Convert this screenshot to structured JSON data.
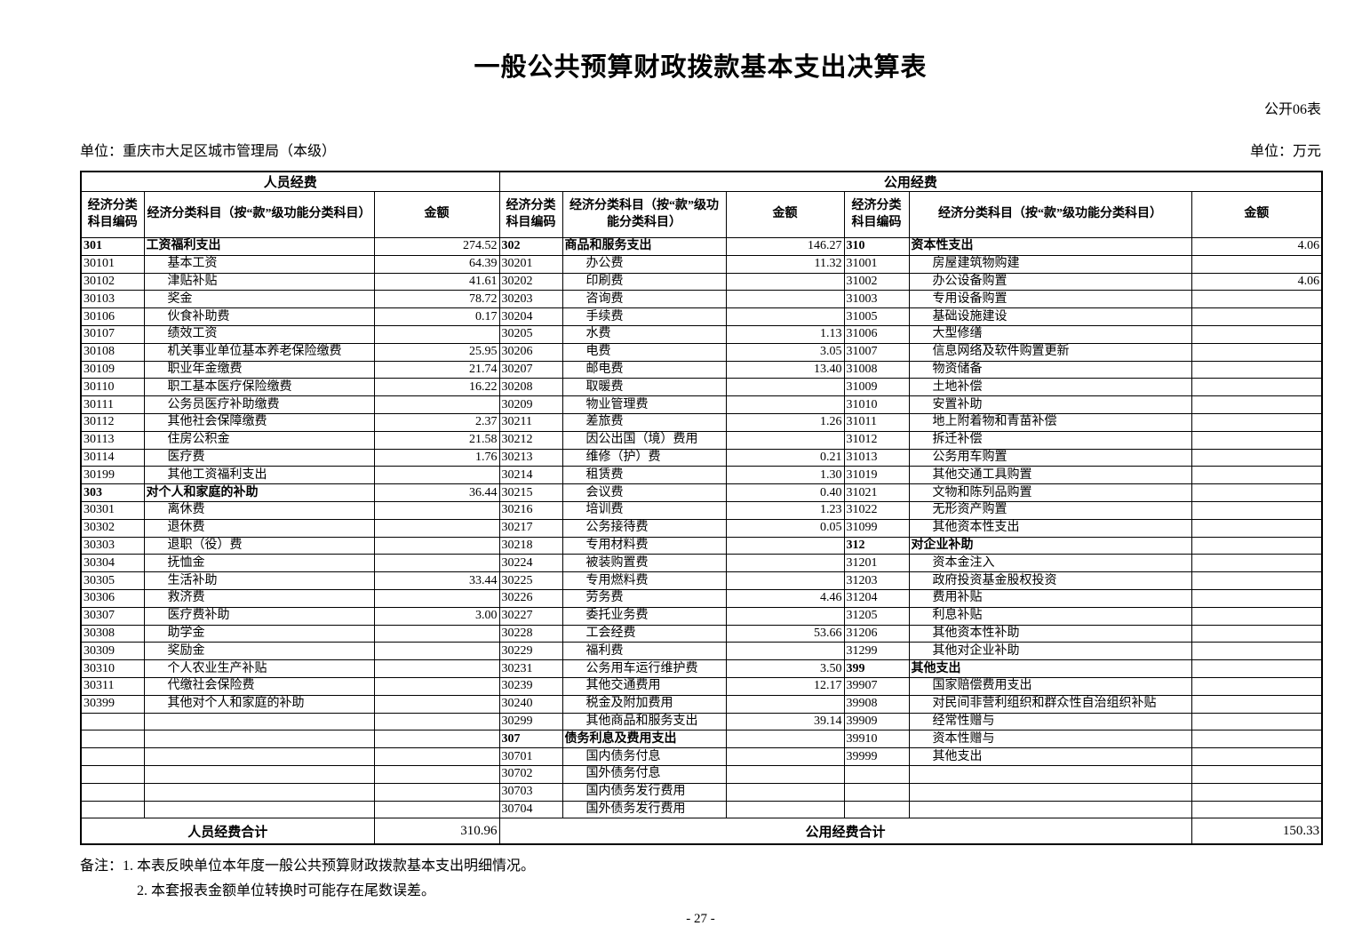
{
  "header": {
    "title": "一般公共预算财政拨款基本支出决算表",
    "form_code": "公开06表",
    "org_label": "单位：重庆市大足区城市管理局（本级）",
    "unit_label": "单位：万元"
  },
  "table": {
    "groups": [
      {
        "label": "人员经费"
      },
      {
        "label": "公用经费"
      }
    ],
    "col_headers": {
      "code": "经济分类科目编码",
      "subject": "经济分类科目（按“款”级功能分类科目）",
      "amount": "金额"
    },
    "rows": [
      [
        "301",
        "工资福利支出",
        "274.52",
        "302",
        "商品和服务支出",
        "146.27",
        "310",
        "资本性支出",
        "4.06"
      ],
      [
        "30101",
        "基本工资",
        "64.39",
        "30201",
        "办公费",
        "11.32",
        "31001",
        "房屋建筑物购建",
        ""
      ],
      [
        "30102",
        "津贴补贴",
        "41.61",
        "30202",
        "印刷费",
        "",
        "31002",
        "办公设备购置",
        "4.06"
      ],
      [
        "30103",
        "奖金",
        "78.72",
        "30203",
        "咨询费",
        "",
        "31003",
        "专用设备购置",
        ""
      ],
      [
        "30106",
        "伙食补助费",
        "0.17",
        "30204",
        "手续费",
        "",
        "31005",
        "基础设施建设",
        ""
      ],
      [
        "30107",
        "绩效工资",
        "",
        "30205",
        "水费",
        "1.13",
        "31006",
        "大型修缮",
        ""
      ],
      [
        "30108",
        "机关事业单位基本养老保险缴费",
        "25.95",
        "30206",
        "电费",
        "3.05",
        "31007",
        "信息网络及软件购置更新",
        ""
      ],
      [
        "30109",
        "职业年金缴费",
        "21.74",
        "30207",
        "邮电费",
        "13.40",
        "31008",
        "物资储备",
        ""
      ],
      [
        "30110",
        "职工基本医疗保险缴费",
        "16.22",
        "30208",
        "取暖费",
        "",
        "31009",
        "土地补偿",
        ""
      ],
      [
        "30111",
        "公务员医疗补助缴费",
        "",
        "30209",
        "物业管理费",
        "",
        "31010",
        "安置补助",
        ""
      ],
      [
        "30112",
        "其他社会保障缴费",
        "2.37",
        "30211",
        "差旅费",
        "1.26",
        "31011",
        "地上附着物和青苗补偿",
        ""
      ],
      [
        "30113",
        "住房公积金",
        "21.58",
        "30212",
        "因公出国（境）费用",
        "",
        "31012",
        "拆迁补偿",
        ""
      ],
      [
        "30114",
        "医疗费",
        "1.76",
        "30213",
        "维修（护）费",
        "0.21",
        "31013",
        "公务用车购置",
        ""
      ],
      [
        "30199",
        "其他工资福利支出",
        "",
        "30214",
        "租赁费",
        "1.30",
        "31019",
        "其他交通工具购置",
        ""
      ],
      [
        "303",
        "对个人和家庭的补助",
        "36.44",
        "30215",
        "会议费",
        "0.40",
        "31021",
        "文物和陈列品购置",
        ""
      ],
      [
        "30301",
        "离休费",
        "",
        "30216",
        "培训费",
        "1.23",
        "31022",
        "无形资产购置",
        ""
      ],
      [
        "30302",
        "退休费",
        "",
        "30217",
        "公务接待费",
        "0.05",
        "31099",
        "其他资本性支出",
        ""
      ],
      [
        "30303",
        "退职（役）费",
        "",
        "30218",
        "专用材料费",
        "",
        "312",
        "对企业补助",
        ""
      ],
      [
        "30304",
        "抚恤金",
        "",
        "30224",
        "被装购置费",
        "",
        "31201",
        "资本金注入",
        ""
      ],
      [
        "30305",
        "生活补助",
        "33.44",
        "30225",
        "专用燃料费",
        "",
        "31203",
        "政府投资基金股权投资",
        ""
      ],
      [
        "30306",
        "救济费",
        "",
        "30226",
        "劳务费",
        "4.46",
        "31204",
        "费用补贴",
        ""
      ],
      [
        "30307",
        "医疗费补助",
        "3.00",
        "30227",
        "委托业务费",
        "",
        "31205",
        "利息补贴",
        ""
      ],
      [
        "30308",
        "助学金",
        "",
        "30228",
        "工会经费",
        "53.66",
        "31206",
        "其他资本性补助",
        ""
      ],
      [
        "30309",
        "奖励金",
        "",
        "30229",
        "福利费",
        "",
        "31299",
        "其他对企业补助",
        ""
      ],
      [
        "30310",
        "个人农业生产补贴",
        "",
        "30231",
        "公务用车运行维护费",
        "3.50",
        "399",
        "其他支出",
        ""
      ],
      [
        "30311",
        "代缴社会保险费",
        "",
        "30239",
        "其他交通费用",
        "12.17",
        "39907",
        "国家赔偿费用支出",
        ""
      ],
      [
        "30399",
        "其他对个人和家庭的补助",
        "",
        "30240",
        "税金及附加费用",
        "",
        "39908",
        "对民间非营利组织和群众性自治组织补贴",
        ""
      ],
      [
        "",
        "",
        "",
        "30299",
        "其他商品和服务支出",
        "39.14",
        "39909",
        "经常性赠与",
        ""
      ],
      [
        "",
        "",
        "",
        "307",
        "债务利息及费用支出",
        "",
        "39910",
        "资本性赠与",
        ""
      ],
      [
        "",
        "",
        "",
        "30701",
        "国内债务付息",
        "",
        "39999",
        "其他支出",
        ""
      ],
      [
        "",
        "",
        "",
        "30702",
        "国外债务付息",
        "",
        "",
        "",
        ""
      ],
      [
        "",
        "",
        "",
        "30703",
        "国内债务发行费用",
        "",
        "",
        "",
        ""
      ],
      [
        "",
        "",
        "",
        "30704",
        "国外债务发行费用",
        "",
        "",
        "",
        ""
      ]
    ],
    "totals": {
      "personnel_label": "人员经费合计",
      "personnel_amount": "310.96",
      "public_label": "公用经费合计",
      "public_amount": "150.33"
    }
  },
  "footer": {
    "notes_prefix": "备注：",
    "note_1": "1. 本表反映单位本年度一般公共预算财政拨款基本支出明细情况。",
    "note_2": "2. 本套报表金额单位转换时可能存在尾数误差。",
    "page_number": "- 27 -"
  }
}
